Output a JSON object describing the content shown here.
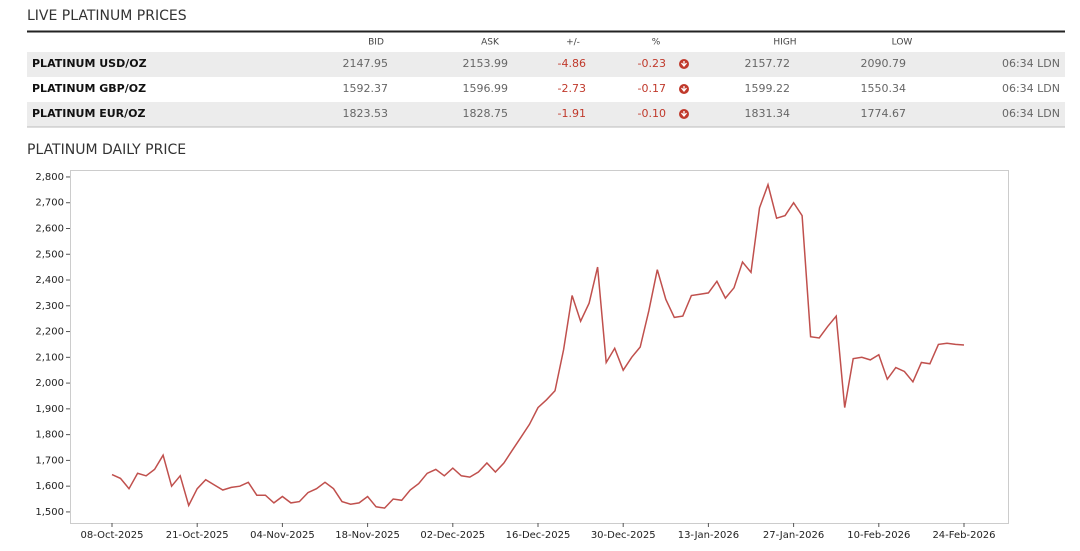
{
  "header": {
    "title": "LIVE PLATINUM PRICES"
  },
  "table": {
    "headers": {
      "bid": "BID",
      "ask": "ASK",
      "change": "+/-",
      "percent": "%",
      "high": "HIGH",
      "low": "LOW"
    },
    "rows": [
      {
        "name": "PLATINUM USD/OZ",
        "bid": "2147.95",
        "ask": "2153.99",
        "change": "-4.86",
        "percent": "-0.23",
        "high": "2157.72",
        "low": "2090.79",
        "time": "06:34 LDN"
      },
      {
        "name": "PLATINUM GBP/OZ",
        "bid": "1592.37",
        "ask": "1596.99",
        "change": "-2.73",
        "percent": "-0.17",
        "high": "1599.22",
        "low": "1550.34",
        "time": "06:34 LDN"
      },
      {
        "name": "PLATINUM EUR/OZ",
        "bid": "1823.53",
        "ask": "1828.75",
        "change": "-1.91",
        "percent": "-0.10",
        "high": "1831.34",
        "low": "1774.67",
        "time": "06:34 LDN"
      }
    ]
  },
  "chart_data": {
    "type": "line",
    "title": "PLATINUM DAILY PRICE",
    "color": "#c0504d",
    "categories": [
      "08-Oct-2025",
      null,
      null,
      null,
      null,
      null,
      null,
      null,
      null,
      null,
      "21-Oct-2025",
      null,
      null,
      null,
      null,
      null,
      null,
      null,
      null,
      null,
      "04-Nov-2025",
      null,
      null,
      null,
      null,
      null,
      null,
      null,
      null,
      null,
      "18-Nov-2025",
      null,
      null,
      null,
      null,
      null,
      null,
      null,
      null,
      null,
      "02-Dec-2025",
      null,
      null,
      null,
      null,
      null,
      null,
      null,
      null,
      null,
      "16-Dec-2025",
      null,
      null,
      null,
      null,
      null,
      null,
      null,
      null,
      null,
      "30-Dec-2025",
      null,
      null,
      null,
      null,
      null,
      null,
      null,
      null,
      null,
      "13-Jan-2026",
      null,
      null,
      null,
      null,
      null,
      null,
      null,
      null,
      null,
      "27-Jan-2026",
      null,
      null,
      null,
      null,
      null,
      null,
      null,
      null,
      null,
      "10-Feb-2026",
      null,
      null,
      null,
      null,
      null,
      null,
      null,
      null,
      null,
      "24-Feb-2026"
    ],
    "values": [
      1645,
      1630,
      1590,
      1650,
      1640,
      1665,
      1720,
      1600,
      1640,
      1525,
      1590,
      1625,
      1605,
      1585,
      1595,
      1600,
      1615,
      1565,
      1565,
      1535,
      1560,
      1535,
      1540,
      1575,
      1590,
      1615,
      1590,
      1540,
      1530,
      1535,
      1560,
      1520,
      1515,
      1550,
      1545,
      1585,
      1610,
      1650,
      1665,
      1640,
      1670,
      1640,
      1635,
      1655,
      1690,
      1655,
      1690,
      1740,
      1790,
      1840,
      1905,
      1935,
      1970,
      2130,
      2340,
      2240,
      2310,
      2450,
      2080,
      2135,
      2050,
      2100,
      2140,
      2280,
      2440,
      2325,
      2255,
      2260,
      2340,
      2345,
      2350,
      2395,
      2330,
      2370,
      2470,
      2430,
      2680,
      2770,
      2640,
      2650,
      2700,
      2650,
      2180,
      2175,
      2220,
      2260,
      1905,
      2095,
      2100,
      2090,
      2110,
      2015,
      2060,
      2045,
      2005,
      2080,
      2075,
      2150,
      2155,
      2150,
      2148
    ],
    "ylim": [
      1457,
      2827
    ],
    "yticks": [
      {
        "value": 1500,
        "label": "1,500"
      },
      {
        "value": 1600,
        "label": "1,600"
      },
      {
        "value": 1700,
        "label": "1,700"
      },
      {
        "value": 1800,
        "label": "1,800"
      },
      {
        "value": 1900,
        "label": "1,900"
      },
      {
        "value": 2000,
        "label": "2,000"
      },
      {
        "value": 2100,
        "label": "2,100"
      },
      {
        "value": 2200,
        "label": "2,200"
      },
      {
        "value": 2300,
        "label": "2,300"
      },
      {
        "value": 2400,
        "label": "2,400"
      },
      {
        "value": 2500,
        "label": "2,500"
      },
      {
        "value": 2600,
        "label": "2,600"
      },
      {
        "value": 2700,
        "label": "2,700"
      },
      {
        "value": 2800,
        "label": "2,800"
      }
    ],
    "grid": false
  }
}
